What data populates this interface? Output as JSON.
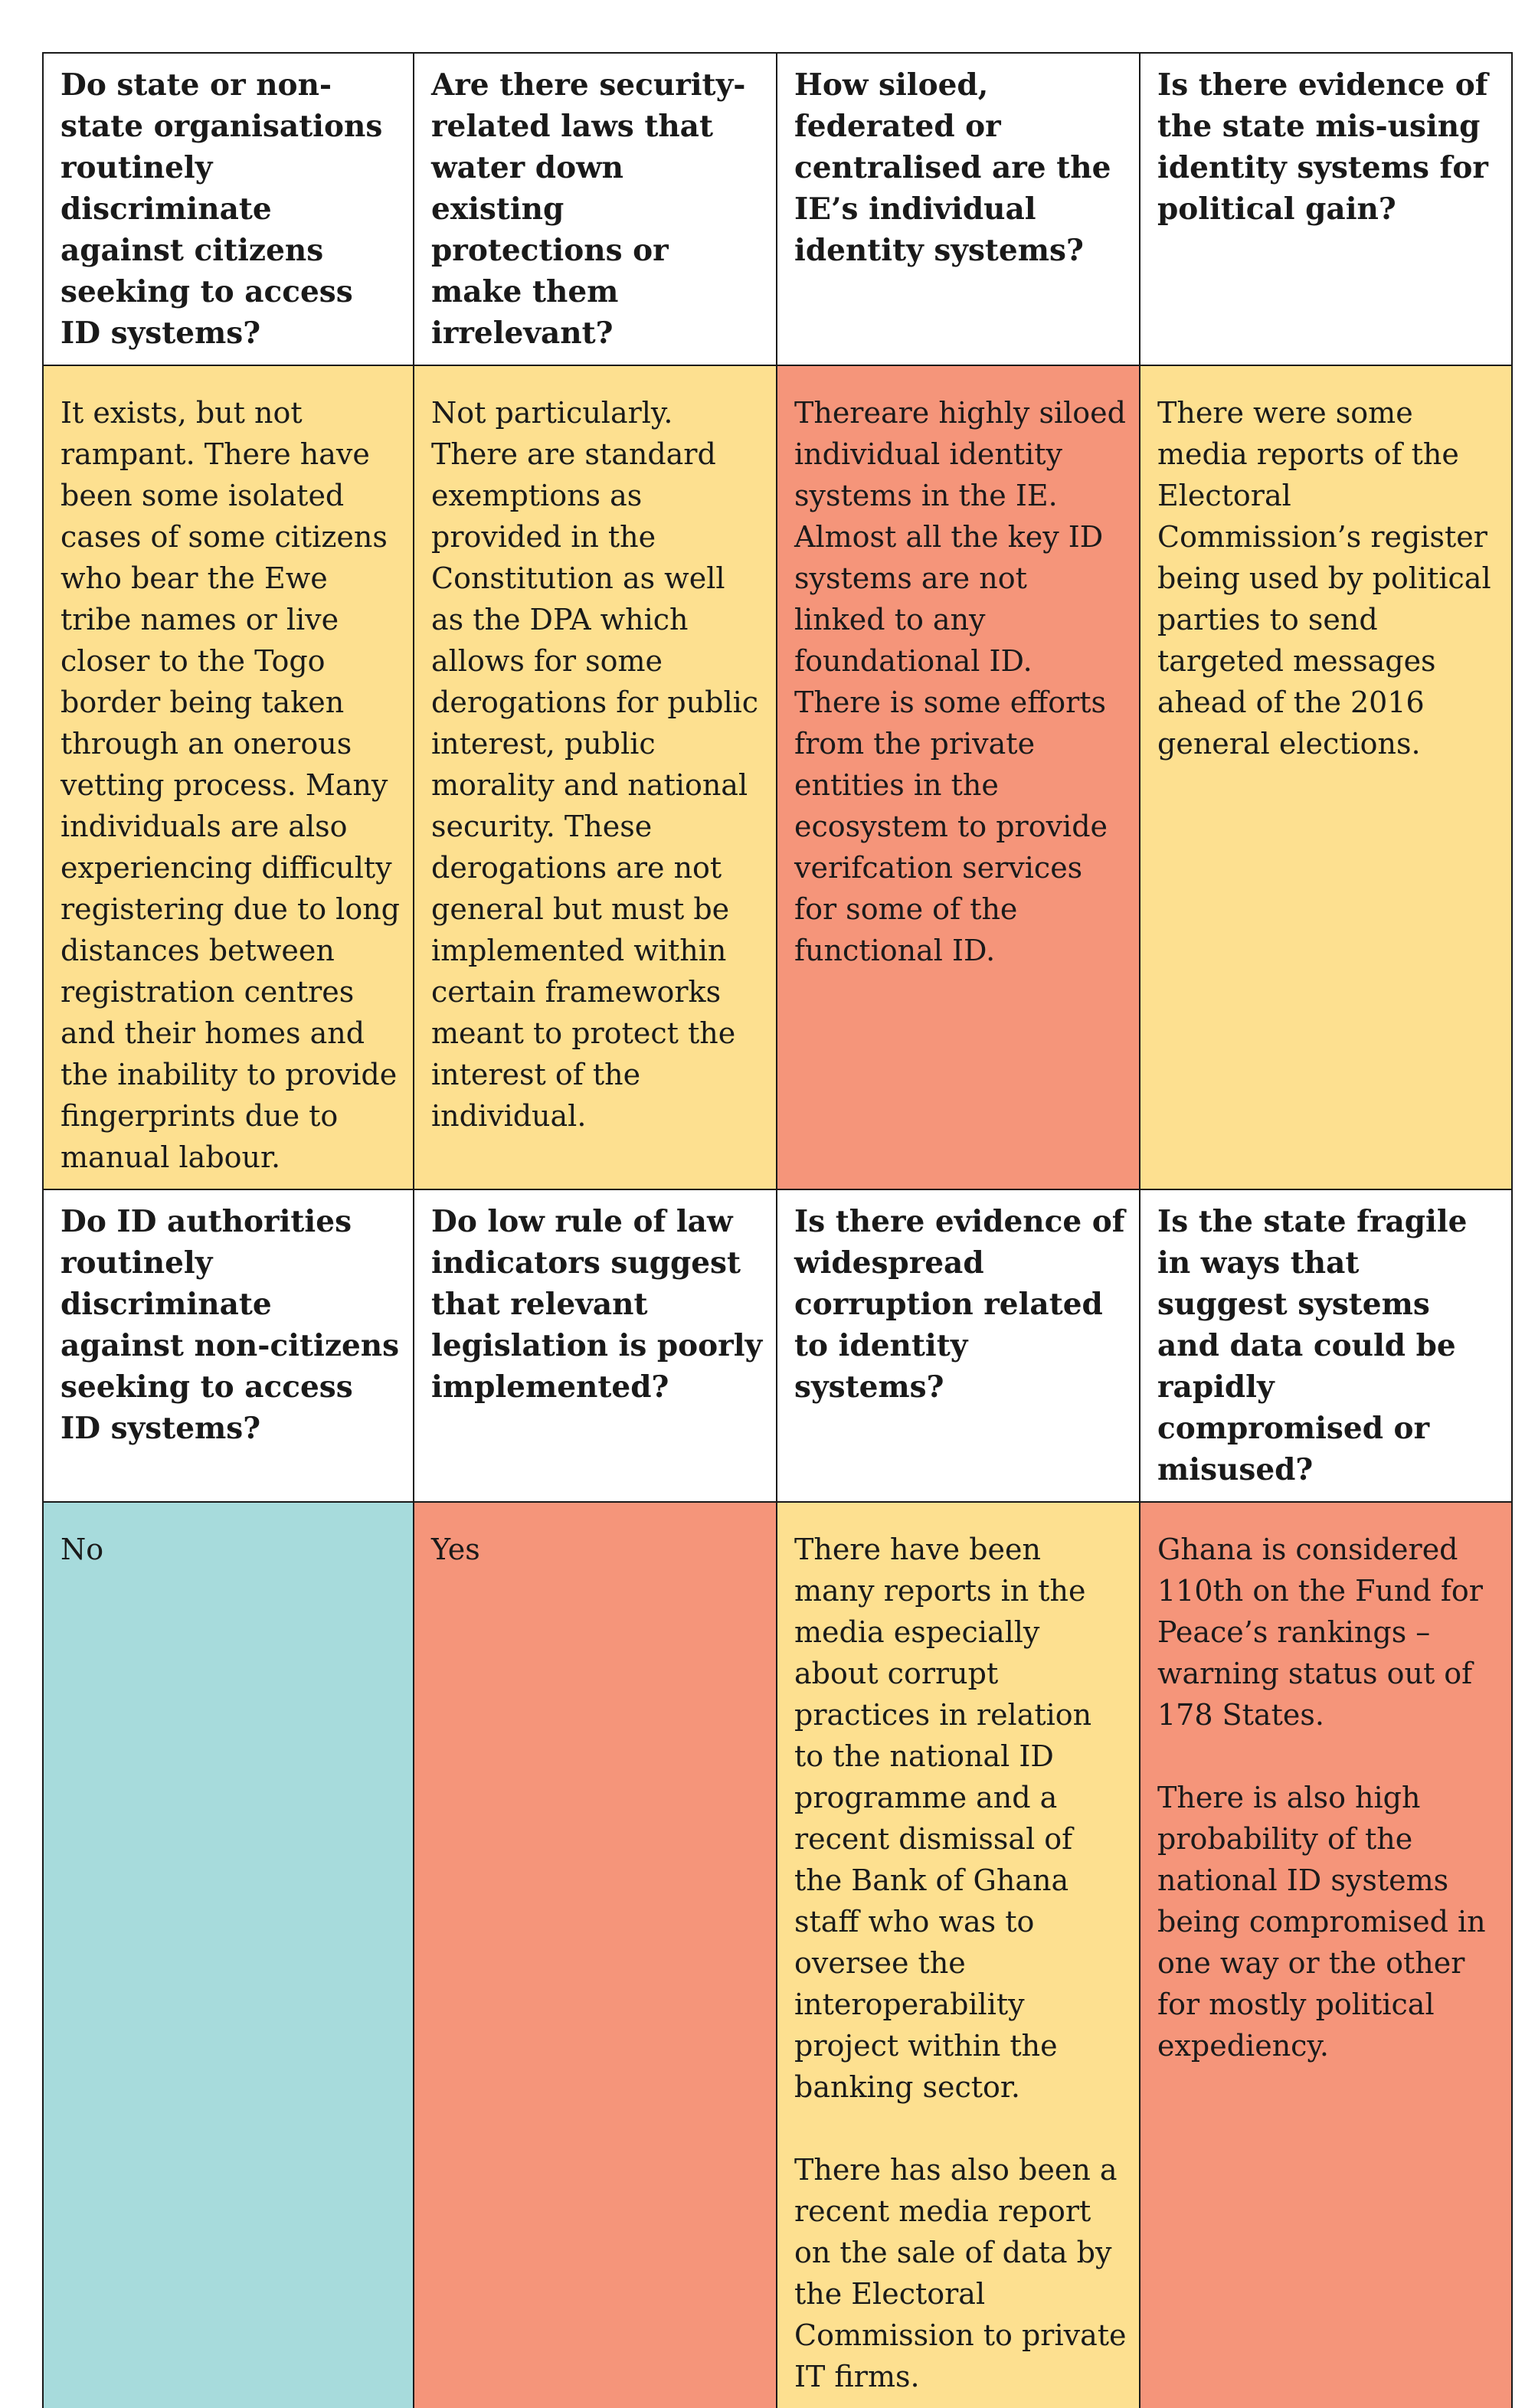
{
  "questions_row_1": [
    "Do state or non-state organisations routinely discriminate against citizens seeking to access ID systems?",
    "Are there security-related laws that water down existing protections or make them irrelevant?",
    "How siloed, federated or centralised are the IE’s individual identity systems?",
    "Is there evidence of the state mis-using identity systems for political gain?"
  ],
  "answers_row_1": [
    {
      "rating_color": "#fde090",
      "paragraphs": [
        "It exists, but not rampant. There have been some isolated cases of some citizens who bear the Ewe tribe names or live closer to the Togo border being taken through an onerous vetting process. Many individuals are also experiencing difficulty registering due to long distances between registration centres and their homes and the inability to provide fingerprints due to manual labour."
      ]
    },
    {
      "rating_color": "#fde090",
      "paragraphs": [
        "Not particularly.\nThere are standard exemptions as provided in the Constitution as well as the DPA which allows for some derogations for public interest, public morality and national security. These derogations are not general but must be implemented within certain frameworks meant to protect the interest of the individual."
      ]
    },
    {
      "rating_color": "#f5957a",
      "paragraphs": [
        "Thereare highly siloed individual identity systems in the IE. Almost all the key ID systems are not linked to any foundational ID. There is some efforts from the private entities in the ecosystem to provide verifcation services for some of the functional ID."
      ]
    },
    {
      "rating_color": "#fde090",
      "paragraphs": [
        "There were some media reports of the Electoral Commission’s register being used by political parties to send targeted messages ahead of the 2016 general elections."
      ]
    }
  ],
  "questions_row_2": [
    "Do ID authorities routinely discriminate against non-citizens seeking to access ID systems?",
    "Do low rule of law indicators suggest that relevant legislation is poorly implemented?",
    "Is there evidence of widespread corruption related to identity systems?",
    "Is the state fragile in ways that suggest systems and data could be rapidly compromised or misused?"
  ],
  "answers_row_2": [
    {
      "rating_color": "#a7dbdc",
      "paragraphs": [
        "No"
      ]
    },
    {
      "rating_color": "#f5957a",
      "paragraphs": [
        "Yes"
      ]
    },
    {
      "rating_color": "#fde090",
      "paragraphs": [
        "There have been many reports in the media especially about corrupt practices in relation to the national ID programme and a recent dismissal of the Bank of Ghana staff who was to oversee the interoperability project within the banking sector.",
        "There has also been a recent media report on the sale of data by the Electoral Commission to private IT firms."
      ]
    },
    {
      "rating_color": "#f5957a",
      "paragraphs": [
        "Ghana is considered 110th on the Fund for Peace’s rankings – warning status out of 178 States.",
        "There is also high probability of the national ID systems being compromised in one way or the other for mostly political expediency."
      ]
    }
  ]
}
